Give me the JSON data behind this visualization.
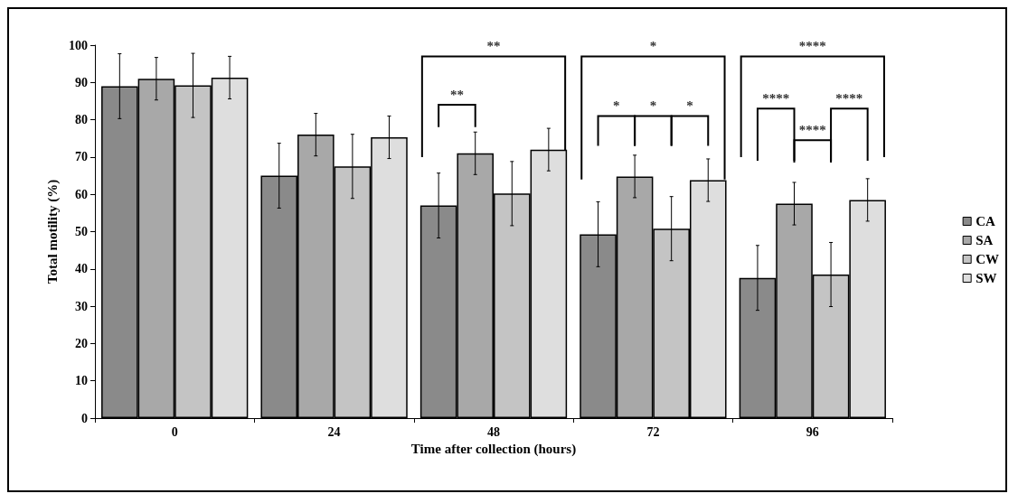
{
  "chart_data": {
    "type": "bar",
    "xlabel": "Time after collection (hours)",
    "ylabel": "Total motility (%)",
    "categories": [
      "0",
      "24",
      "48",
      "72",
      "96"
    ],
    "series": [
      {
        "name": "CA",
        "color": "#8a8a8a",
        "values": [
          89,
          65,
          57,
          49.3,
          37.6
        ],
        "errors": [
          8.7,
          8.7,
          8.7,
          8.7,
          8.7
        ]
      },
      {
        "name": "SA",
        "color": "#a8a8a8",
        "values": [
          91,
          76,
          71,
          64.8,
          57.5
        ],
        "errors": [
          5.7,
          5.7,
          5.7,
          5.7,
          5.7
        ]
      },
      {
        "name": "CW",
        "color": "#c4c4c4",
        "values": [
          89.2,
          67.5,
          60.2,
          50.8,
          38.5
        ],
        "errors": [
          8.6,
          8.6,
          8.6,
          8.6,
          8.6
        ]
      },
      {
        "name": "SW",
        "color": "#dedede",
        "values": [
          91.3,
          75.3,
          72,
          63.8,
          58.5
        ],
        "errors": [
          5.7,
          5.7,
          5.7,
          5.7,
          5.7
        ]
      }
    ],
    "ylim": [
      0,
      100
    ],
    "yticks": [
      0,
      10,
      20,
      30,
      40,
      50,
      60,
      70,
      80,
      90,
      100
    ],
    "grid": false,
    "legend": "right",
    "annotations": [
      "**",
      "**",
      "*",
      "*",
      "*",
      "*",
      "****",
      "****",
      "****",
      "****"
    ]
  }
}
